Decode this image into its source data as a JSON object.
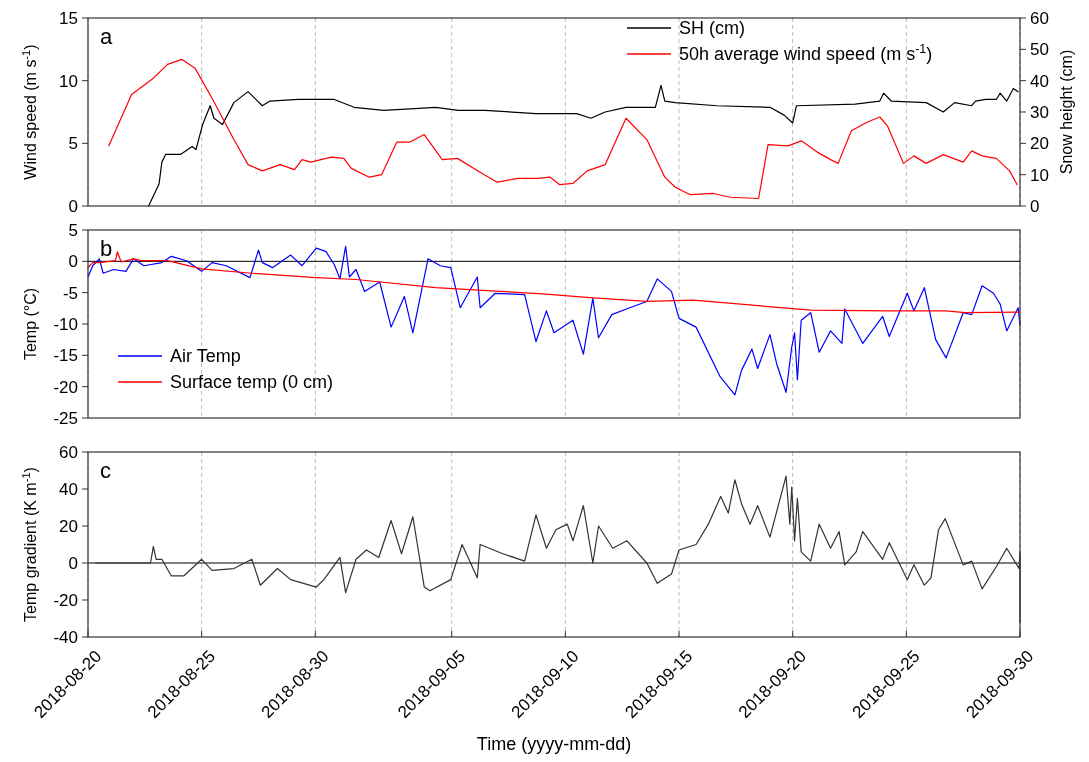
{
  "chart_data": [
    {
      "type": "line",
      "title": "a",
      "ylabel": "Wind speed (m s$^{-1}$)",
      "y2label": "Snow height (cm)",
      "xlim": [
        "2018-08-20",
        "2018-09-30"
      ],
      "xticks": [
        "2018-08-20",
        "2018-08-25",
        "2018-08-30",
        "2018-09-05",
        "2018-09-10",
        "2018-09-15",
        "2018-09-20",
        "2018-09-25",
        "2018-09-30"
      ],
      "ylim": [
        0,
        15
      ],
      "yticks": [
        0,
        5,
        10,
        15
      ],
      "y2lim": [
        0,
        60
      ],
      "y2ticks": [
        0,
        10,
        20,
        30,
        40,
        50,
        60
      ],
      "grid": "x",
      "legend": "top right",
      "tick_labels": "y",
      "line_style": "solid",
      "series": [
        {
          "name": "SH (cm)",
          "color": "#000000",
          "axis": "y2",
          "x": [
            "2018-08-22T16:00",
            "2018-08-23T03:00",
            "2018-08-23T06:00",
            "2018-08-23T10:00",
            "2018-08-24T02:00",
            "2018-08-24T14:00",
            "2018-08-24T18:00",
            "2018-08-25T01:00",
            "2018-08-25T09:00",
            "2018-08-25T13:00",
            "2018-08-25T22:00",
            "2018-08-26T10:00",
            "2018-08-27T01:00",
            "2018-08-27T16:00",
            "2018-08-28T00:00",
            "2018-08-29T06:00",
            "2018-08-30T05:00",
            "2018-08-30T20:00",
            "2018-08-31T17:00",
            "2018-09-02T00:00",
            "2018-09-03T04:00",
            "2018-09-04T07:00",
            "2018-09-05T07:00",
            "2018-09-06T11:00",
            "2018-09-08T17:00",
            "2018-09-10T12:00",
            "2018-09-11T03:00",
            "2018-09-11T18:00",
            "2018-09-12T16:00",
            "2018-09-13T23:00",
            "2018-09-14T05:00",
            "2018-09-14T09:00",
            "2018-09-14T20:00",
            "2018-09-16T16:00",
            "2018-09-19T00:00",
            "2018-09-19T15:00",
            "2018-09-20T00:00",
            "2018-09-20T04:00",
            "2018-09-22T18:00",
            "2018-09-23T20:00",
            "2018-09-24T00:00",
            "2018-09-24T08:00",
            "2018-09-25T21:00",
            "2018-09-26T15:00",
            "2018-09-27T03:00",
            "2018-09-27T21:00",
            "2018-09-28T01:00",
            "2018-09-28T12:00",
            "2018-09-28T23:00",
            "2018-09-29T03:00",
            "2018-09-29T10:00",
            "2018-09-29T17:00",
            "2018-09-29T22:00"
          ],
          "values": [
            0,
            7,
            14,
            16.5,
            16.5,
            19,
            18,
            26,
            32,
            28,
            26,
            33,
            36.5,
            32,
            33.5,
            34,
            34,
            34,
            31.5,
            30.5,
            31,
            31.5,
            30.5,
            30.5,
            29.5,
            29.5,
            28,
            30,
            31.5,
            31.5,
            38.5,
            33.5,
            33,
            32,
            31.5,
            29,
            26.5,
            32,
            32.5,
            33.5,
            36,
            33.5,
            33,
            30,
            33,
            32,
            33.5,
            34,
            34,
            36,
            33.5,
            37.5,
            36.5
          ]
        },
        {
          "name": "50h average wind speed (m s$^{-1}$)",
          "color": "#ff0000",
          "x": [
            "2018-08-20T22:00",
            "2018-08-21T22:00",
            "2018-08-22T21:00",
            "2018-08-23T12:00",
            "2018-08-24T03:00",
            "2018-08-24T17:00",
            "2018-08-25T11:00",
            "2018-08-26T10:00",
            "2018-08-27T01:00",
            "2018-08-27T16:00",
            "2018-08-28T11:00",
            "2018-08-29T02:00",
            "2018-08-29T10:00",
            "2018-08-29T19:00",
            "2018-08-30T17:00",
            "2018-08-31T06:00",
            "2018-08-31T14:00",
            "2018-09-01T09:00",
            "2018-09-01T22:00",
            "2018-09-02T14:00",
            "2018-09-03T04:00",
            "2018-09-03T19:00",
            "2018-09-04T14:00",
            "2018-09-05T06:00",
            "2018-09-06T06:00",
            "2018-09-07T00:00",
            "2018-09-07T22:00",
            "2018-09-08T19:00",
            "2018-09-09T08:00",
            "2018-09-09T18:00",
            "2018-09-10T08:00",
            "2018-09-10T23:00",
            "2018-09-11T18:00",
            "2018-09-12T16:00",
            "2018-09-13T14:00",
            "2018-09-14T09:00",
            "2018-09-14T20:00",
            "2018-09-15T12:00",
            "2018-09-16T12:00",
            "2018-09-17T06:00",
            "2018-09-18T12:00",
            "2018-09-18T22:00",
            "2018-09-19T19:00",
            "2018-09-20T09:00",
            "2018-09-21T02:00",
            "2018-09-21T16:00",
            "2018-09-22T00:00",
            "2018-09-22T14:00",
            "2018-09-23T07:00",
            "2018-09-23T20:00",
            "2018-09-24T04:00",
            "2018-09-24T21:00",
            "2018-09-25T08:00",
            "2018-09-25T21:00",
            "2018-09-26T15:00",
            "2018-09-27T12:00",
            "2018-09-27T21:00",
            "2018-09-28T08:00",
            "2018-09-28T23:00",
            "2018-09-29T13:00",
            "2018-09-29T21:00"
          ],
          "values": [
            4.8,
            8.9,
            10.2,
            11.3,
            11.7,
            11,
            8.6,
            5.3,
            3.3,
            2.8,
            3.3,
            2.9,
            3.7,
            3.5,
            3.9,
            3.8,
            3,
            2.3,
            2.5,
            5.1,
            5.1,
            5.7,
            3.7,
            3.8,
            2.7,
            1.9,
            2.2,
            2.2,
            2.3,
            1.7,
            1.8,
            2.8,
            3.3,
            7,
            5.3,
            2.3,
            1.5,
            0.9,
            1,
            0.7,
            0.6,
            4.9,
            4.8,
            5.2,
            4.3,
            3.7,
            3.4,
            6,
            6.7,
            7.1,
            6.4,
            3.4,
            4,
            3.4,
            4.1,
            3.5,
            4.4,
            4,
            3.8,
            2.8,
            1.7
          ]
        }
      ]
    },
    {
      "type": "line",
      "title": "b",
      "ylabel": "Temp (°C)",
      "xlim": [
        "2018-08-20",
        "2018-09-30"
      ],
      "xticks": [
        "2018-08-20",
        "2018-08-25",
        "2018-08-30",
        "2018-09-05",
        "2018-09-10",
        "2018-09-15",
        "2018-09-20",
        "2018-09-25",
        "2018-09-30"
      ],
      "ylim": [
        -25,
        5
      ],
      "yticks": [
        -25,
        -20,
        -15,
        -10,
        -5,
        0,
        5
      ],
      "grid": "x",
      "legend": "bottom left",
      "tick_labels": "y",
      "line_style": "solid",
      "ref_lines": [
        {
          "axis": "y",
          "value": 0,
          "color": "#000000"
        }
      ],
      "series": [
        {
          "name": "Air Temp",
          "color": "#0000ff",
          "x": [
            "2018-08-20T00:00",
            "2018-08-20T05:00",
            "2018-08-20T12:00",
            "2018-08-20T16:00",
            "2018-08-21T03:00",
            "2018-08-21T16:00",
            "2018-08-22T00:00",
            "2018-08-22T11:00",
            "2018-08-23T06:00",
            "2018-08-23T16:00",
            "2018-08-24T08:00",
            "2018-08-25T00:00",
            "2018-08-25T11:00",
            "2018-08-26T02:00",
            "2018-08-27T03:00",
            "2018-08-27T12:00",
            "2018-08-27T16:00",
            "2018-08-28T03:00",
            "2018-08-28T22:00",
            "2018-08-29T10:00",
            "2018-08-30T01:00",
            "2018-08-30T11:00",
            "2018-08-30T20:00",
            "2018-08-31T02:00",
            "2018-08-31T08:00",
            "2018-08-31T12:00",
            "2018-08-31T19:00",
            "2018-09-01T04:00",
            "2018-09-01T20:00",
            "2018-09-02T08:00",
            "2018-09-02T22:00",
            "2018-09-03T07:00",
            "2018-09-03T23:00",
            "2018-09-04T12:00",
            "2018-09-04T23:00",
            "2018-09-05T09:00",
            "2018-09-06T03:00",
            "2018-09-06T06:00",
            "2018-09-06T22:00",
            "2018-09-08T05:00",
            "2018-09-08T17:00",
            "2018-09-09T04:00",
            "2018-09-09T12:00",
            "2018-09-10T08:00",
            "2018-09-10T19:00",
            "2018-09-11T05:00",
            "2018-09-11T11:00",
            "2018-09-12T01:00",
            "2018-09-12T20:00",
            "2018-09-13T14:00",
            "2018-09-14T01:00",
            "2018-09-14T16:00",
            "2018-09-15T00:00",
            "2018-09-15T18:00",
            "2018-09-16T19:00",
            "2018-09-17T11:00",
            "2018-09-17T18:00",
            "2018-09-18T05:00",
            "2018-09-18T11:00",
            "2018-09-19T00:00",
            "2018-09-19T07:00",
            "2018-09-19T17:00",
            "2018-09-19T23:00",
            "2018-09-20T02:00",
            "2018-09-20T05:00",
            "2018-09-20T09:00",
            "2018-09-20T19:00",
            "2018-09-21T04:00",
            "2018-09-21T16:00",
            "2018-09-22T04:00",
            "2018-09-22T07:00",
            "2018-09-23T02:00",
            "2018-09-23T23:00",
            "2018-09-24T06:00",
            "2018-09-25T01:00",
            "2018-09-25T08:00",
            "2018-09-25T19:00",
            "2018-09-26T07:00",
            "2018-09-26T18:00",
            "2018-09-27T12:00",
            "2018-09-27T21:00",
            "2018-09-28T08:00",
            "2018-09-28T20:00",
            "2018-09-29T03:00",
            "2018-09-29T10:00",
            "2018-09-29T22:00",
            "2018-09-30T00:00"
          ],
          "values": [
            -2.5,
            -0.7,
            0.4,
            -1.9,
            -1.3,
            -1.6,
            0.4,
            -0.7,
            -0.2,
            0.8,
            0.1,
            -1.6,
            -0.2,
            -0.7,
            -2.6,
            1.8,
            -0.2,
            -1,
            1,
            -0.7,
            2.1,
            1.6,
            -0.5,
            -2.8,
            2.4,
            -2.5,
            -1.3,
            -4.8,
            -3.3,
            -10.5,
            -5.6,
            -11.4,
            0.4,
            -0.7,
            -1,
            -7.4,
            -2.5,
            -7.4,
            -5.1,
            -5.3,
            -12.8,
            -7.9,
            -11.4,
            -9.4,
            -14.8,
            -5.9,
            -12.2,
            -8.5,
            -7.4,
            -6.4,
            -2.8,
            -4.8,
            -9.1,
            -10.5,
            -18.3,
            -21.3,
            -17.4,
            -14,
            -17.1,
            -11.7,
            -16.3,
            -20.9,
            -13.7,
            -11.4,
            -18.9,
            -9.4,
            -8.2,
            -14.5,
            -11.1,
            -13.1,
            -7.6,
            -13.1,
            -8.8,
            -12,
            -5.1,
            -7.9,
            -4.2,
            -12.5,
            -15.4,
            -8.2,
            -8.5,
            -3.9,
            -5.1,
            -6.8,
            -11.1,
            -7.4,
            -10.2
          ]
        },
        {
          "name": "Surface temp (0 cm)",
          "color": "#ff0000",
          "x": [
            "2018-08-20T00:00",
            "2018-08-20T05:00",
            "2018-08-20T12:00",
            "2018-08-21T05:00",
            "2018-08-21T07:00",
            "2018-08-21T11:00",
            "2018-08-22T00:00",
            "2018-08-22T08:00",
            "2018-08-23T12:00",
            "2018-08-25T00:00",
            "2018-08-27T05:00",
            "2018-08-30T01:00",
            "2018-08-31T19:00",
            "2018-09-04T07:00",
            "2018-09-06T18:00",
            "2018-09-09T00:00",
            "2018-09-11T02:00",
            "2018-09-13T14:00",
            "2018-09-15T15:00",
            "2018-09-17T14:00",
            "2018-09-20T19:00",
            "2018-09-24T05:00",
            "2018-09-26T18:00",
            "2018-09-27T14:00",
            "2018-09-30T00:00"
          ],
          "values": [
            -1,
            -0.2,
            -0.2,
            0.1,
            1.5,
            -0.1,
            0.4,
            0.1,
            0.1,
            -1.2,
            -1.9,
            -2.6,
            -2.9,
            -4.2,
            -4.7,
            -5.2,
            -5.8,
            -6.4,
            -6.2,
            -6.8,
            -7.8,
            -7.9,
            -7.9,
            -8.2,
            -8.1
          ]
        }
      ]
    },
    {
      "type": "line",
      "title": "c",
      "ylabel": "Temp gradient (K m$^{-1}$)",
      "xlabel": "Time (yyyy-mm-dd)",
      "xlim": [
        "2018-08-20",
        "2018-09-30"
      ],
      "xticks": [
        "2018-08-20",
        "2018-08-25",
        "2018-08-30",
        "2018-09-05",
        "2018-09-10",
        "2018-09-15",
        "2018-09-20",
        "2018-09-25",
        "2018-09-30"
      ],
      "ylim": [
        -40,
        60
      ],
      "yticks": [
        -40,
        -20,
        0,
        20,
        40,
        60
      ],
      "grid": "x",
      "line_style": "solid",
      "ref_lines": [
        {
          "axis": "y",
          "value": 0,
          "color": "#000000"
        }
      ],
      "series": [
        {
          "color": "#333333",
          "x": [
            "2018-08-20T08:00",
            "2018-08-22T18:00",
            "2018-08-22T21:00",
            "2018-08-23T00:00",
            "2018-08-23T06:00",
            "2018-08-23T16:00",
            "2018-08-24T05:00",
            "2018-08-25T00:00",
            "2018-08-25T11:00",
            "2018-08-26T10:00",
            "2018-08-27T05:00",
            "2018-08-27T14:00",
            "2018-08-28T08:00",
            "2018-08-28T22:00",
            "2018-08-30T01:00",
            "2018-08-30T09:00",
            "2018-08-31T02:00",
            "2018-08-31T08:00",
            "2018-08-31T19:00",
            "2018-09-01T06:00",
            "2018-09-01T19:00",
            "2018-09-02T08:00",
            "2018-09-02T19:00",
            "2018-09-03T07:00",
            "2018-09-03T19:00",
            "2018-09-04T01:00",
            "2018-09-04T23:00",
            "2018-09-05T11:00",
            "2018-09-06T03:00",
            "2018-09-06T06:00",
            "2018-09-07T06:00",
            "2018-09-08T05:00",
            "2018-09-08T17:00",
            "2018-09-09T04:00",
            "2018-09-09T14:00",
            "2018-09-10T02:00",
            "2018-09-10T08:00",
            "2018-09-10T19:00",
            "2018-09-11T05:00",
            "2018-09-11T11:00",
            "2018-09-12T02:00",
            "2018-09-12T17:00",
            "2018-09-13T14:00",
            "2018-09-14T01:00",
            "2018-09-14T16:00",
            "2018-09-15T00:00",
            "2018-09-15T18:00",
            "2018-09-16T07:00",
            "2018-09-16T20:00",
            "2018-09-17T04:00",
            "2018-09-17T11:00",
            "2018-09-17T18:00",
            "2018-09-18T03:00",
            "2018-09-18T11:00",
            "2018-09-19T00:00",
            "2018-09-19T17:00",
            "2018-09-19T21:00",
            "2018-09-19T23:00",
            "2018-09-20T02:00",
            "2018-09-20T05:00",
            "2018-09-20T09:00",
            "2018-09-20T19:00",
            "2018-09-21T04:00",
            "2018-09-21T16:00",
            "2018-09-22T01:00",
            "2018-09-22T07:00",
            "2018-09-22T19:00",
            "2018-09-23T02:00",
            "2018-09-23T23:00",
            "2018-09-24T06:00",
            "2018-09-25T01:00",
            "2018-09-25T08:00",
            "2018-09-25T19:00",
            "2018-09-26T02:00",
            "2018-09-26T10:00",
            "2018-09-26T17:00",
            "2018-09-27T12:00",
            "2018-09-27T21:00",
            "2018-09-28T08:00",
            "2018-09-28T23:00",
            "2018-09-29T10:00",
            "2018-09-29T23:00",
            "2018-09-30T00:00",
            "2018-09-30T00:00"
          ],
          "values": [
            0,
            0,
            9,
            2,
            2,
            -7,
            -7,
            2,
            -4,
            -3,
            2,
            -12,
            -3,
            -9,
            -13,
            -9,
            3,
            -16,
            2,
            7,
            3,
            23,
            5,
            25,
            -13,
            -15,
            -9,
            10,
            -8,
            10,
            5,
            1,
            26,
            8,
            18,
            21,
            12,
            31,
            0,
            20,
            8,
            12,
            0,
            -11,
            -6,
            7,
            10,
            21,
            36,
            27,
            45,
            32,
            21,
            31,
            14,
            47,
            21,
            41,
            12,
            35,
            6,
            1,
            21,
            8,
            17,
            -1,
            6,
            17,
            2,
            11,
            -9,
            -1,
            -12,
            -8,
            18,
            24,
            -1,
            1,
            -14,
            -2,
            8,
            -3,
            6,
            -32
          ]
        }
      ]
    }
  ]
}
